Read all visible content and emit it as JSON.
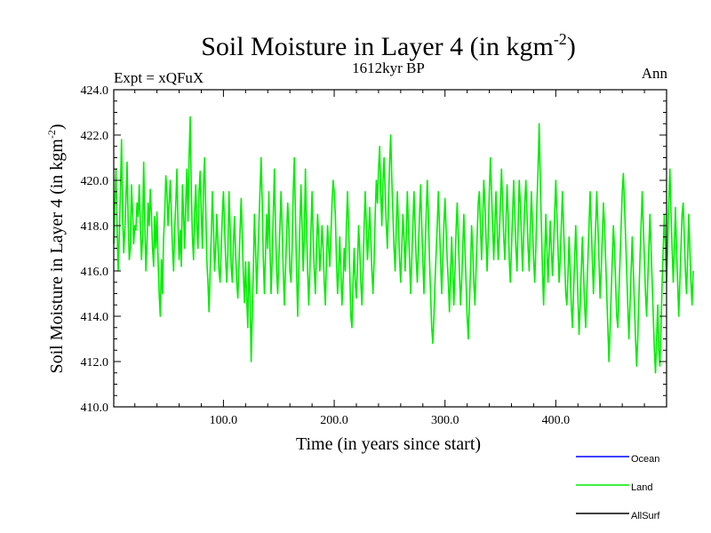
{
  "chart_data": {
    "type": "line",
    "title": "Soil Moisture in Layer 4 (in kgm",
    "title_sup": "-2",
    "title_close": ")",
    "subtitle": "1612kyr BP",
    "left_label": "Expt = xQFuX",
    "right_label": "Ann",
    "xlabel": "Time (in years since start)",
    "ylabel": "Soil Moisture in Layer 4 (in kgm",
    "ylabel_sup": "-2",
    "ylabel_close": ")",
    "xlim": [
      1,
      500
    ],
    "ylim": [
      410.0,
      424.0
    ],
    "xticks": [
      100,
      200,
      300,
      400
    ],
    "xtick_labels": [
      "100.0",
      "200.0",
      "300.0",
      "400.0"
    ],
    "yticks": [
      410,
      412,
      414,
      416,
      418,
      420,
      422,
      424
    ],
    "ytick_labels": [
      "410.0",
      "412.0",
      "414.0",
      "416.0",
      "418.0",
      "420.0",
      "422.0",
      "424.0"
    ],
    "legend": [
      {
        "name": "Ocean",
        "color": "#0000ff"
      },
      {
        "name": "Land",
        "color": "#00ee00"
      },
      {
        "name": "AllSurf",
        "color": "#000000"
      }
    ],
    "series": [
      {
        "name": "Land",
        "color": "#00ee00",
        "x_start": 1,
        "x_step": 1,
        "values": [
          417.2,
          419.0,
          420.5,
          418.0,
          416.0,
          417.5,
          419.5,
          421.8,
          418.5,
          416.8,
          417.8,
          419.2,
          420.8,
          418.2,
          416.5,
          417.0,
          419.8,
          418.6,
          417.2,
          418.0,
          417.8,
          419.0,
          418.4,
          419.8,
          418.0,
          416.5,
          417.5,
          420.8,
          418.2,
          416.0,
          417.2,
          419.0,
          418.0,
          419.6,
          418.5,
          417.0,
          416.2,
          418.4,
          417.0,
          418.6,
          416.5,
          415.0,
          414.0,
          416.5,
          415.0,
          417.5,
          418.5,
          420.2,
          419.5,
          418.0,
          419.0,
          420.0,
          418.5,
          417.0,
          416.0,
          417.8,
          419.0,
          420.5,
          418.0,
          416.5,
          417.8,
          416.2,
          419.8,
          418.5,
          417.0,
          419.0,
          420.5,
          418.2,
          421.0,
          422.8,
          419.5,
          417.5,
          416.5,
          418.5,
          419.8,
          418.0,
          417.0,
          419.5,
          420.4,
          418.5,
          417.0,
          419.8,
          421.0,
          418.8,
          416.5,
          415.5,
          414.2,
          416.0,
          417.5,
          419.5,
          418.0,
          416.0,
          417.0,
          418.5,
          417.2,
          416.0,
          415.5,
          417.0,
          418.5,
          419.5,
          418.0,
          416.5,
          415.5,
          416.8,
          419.5,
          418.0,
          416.2,
          415.5,
          417.2,
          418.4,
          416.8,
          415.5,
          414.8,
          416.2,
          417.8,
          419.2,
          417.5,
          415.8,
          414.6,
          416.4,
          414.8,
          413.5,
          416.4,
          415.0,
          412.0,
          414.0,
          416.0,
          418.5,
          417.0,
          415.0,
          416.5,
          418.0,
          419.5,
          421.0,
          419.0,
          416.5,
          415.0,
          416.8,
          418.5,
          417.0,
          419.5,
          417.0,
          415.0,
          416.5,
          418.5,
          420.5,
          418.0,
          416.0,
          415.0,
          416.5,
          418.0,
          419.5,
          417.8,
          416.0,
          414.5,
          416.0,
          417.5,
          419.0,
          418.0,
          416.0,
          415.5,
          417.0,
          419.5,
          421.0,
          418.5,
          416.0,
          414.0,
          416.0,
          418.0,
          419.8,
          418.0,
          416.0,
          417.5,
          420.5,
          418.0,
          416.0,
          414.5,
          416.0,
          417.8,
          419.5,
          417.5,
          416.0,
          415.0,
          417.0,
          418.5,
          417.5,
          416.0,
          416.8,
          418.0,
          417.0,
          415.5,
          414.5,
          416.5,
          418.0,
          417.0,
          416.2,
          417.5,
          419.0,
          420.0,
          419.5,
          418.5,
          416.5,
          415.0,
          416.0,
          417.5,
          416.0,
          414.5,
          415.5,
          417.0,
          416.0,
          418.0,
          419.5,
          418.0,
          416.0,
          414.0,
          413.5,
          415.5,
          417.0,
          415.5,
          414.8,
          416.2,
          418.0,
          417.0,
          415.5,
          414.5,
          416.0,
          418.0,
          419.5,
          418.0,
          416.5,
          417.5,
          418.8,
          417.5,
          416.0,
          415.0,
          416.5,
          418.5,
          420.0,
          419.0,
          420.5,
          421.5,
          419.5,
          418.0,
          420.0,
          421.0,
          419.5,
          418.0,
          417.0,
          419.0,
          420.8,
          422.0,
          420.0,
          418.5,
          417.0,
          416.0,
          418.0,
          419.5,
          418.0,
          416.5,
          415.5,
          417.0,
          418.5,
          417.5,
          416.0,
          417.5,
          419.5,
          418.0,
          416.5,
          415.0,
          416.5,
          418.0,
          419.5,
          418.0,
          416.5,
          415.5,
          417.0,
          418.5,
          419.8,
          418.0,
          416.5,
          415.0,
          416.8,
          418.5,
          420.0,
          418.5,
          416.5,
          415.0,
          413.5,
          412.8,
          414.0,
          415.5,
          416.8,
          418.0,
          419.5,
          418.0,
          416.5,
          415.0,
          416.5,
          418.0,
          419.2,
          417.8,
          416.5,
          415.5,
          414.2,
          415.8,
          417.5,
          416.0,
          414.5,
          416.0,
          417.8,
          419.0,
          417.5,
          416.0,
          414.5,
          415.5,
          417.0,
          418.5,
          417.0,
          415.5,
          414.0,
          413.0,
          414.5,
          416.0,
          418.0,
          417.0,
          415.5,
          414.5,
          416.0,
          417.5,
          419.0,
          419.5,
          418.0,
          416.5,
          418.0,
          420.0,
          419.0,
          417.5,
          416.0,
          417.5,
          419.5,
          421.0,
          419.5,
          418.0,
          416.5,
          418.0,
          419.5,
          418.0,
          416.5,
          417.5,
          419.0,
          420.5,
          419.0,
          417.5,
          416.5,
          418.0,
          419.8,
          418.5,
          416.5,
          415.5,
          417.0,
          418.5,
          420.0,
          418.5,
          417.0,
          416.0,
          418.0,
          420.0,
          419.0,
          417.5,
          416.0,
          417.5,
          419.0,
          420.0,
          418.5,
          417.0,
          416.0,
          418.0,
          419.5,
          418.0,
          416.5,
          415.5,
          417.0,
          419.0,
          420.5,
          422.5,
          420.0,
          418.0,
          416.0,
          414.5,
          416.5,
          418.5,
          417.0,
          415.5,
          416.8,
          418.2,
          417.0,
          415.8,
          417.0,
          418.5,
          420.0,
          418.5,
          417.0,
          415.5,
          416.5,
          418.0,
          419.5,
          418.0,
          416.5,
          415.0,
          414.5,
          415.8,
          417.5,
          416.0,
          414.5,
          413.5,
          415.0,
          416.5,
          418.0,
          416.5,
          414.8,
          413.2,
          414.5,
          416.0,
          417.5,
          416.0,
          414.5,
          413.5,
          415.0,
          416.5,
          418.0,
          419.5,
          418.0,
          416.5,
          415.0,
          416.5,
          418.0,
          419.5,
          418.0,
          416.5,
          414.8,
          416.0,
          417.5,
          419.0,
          418.0,
          416.5,
          415.0,
          413.5,
          412.0,
          413.5,
          415.0,
          416.5,
          418.0,
          417.0,
          415.5,
          414.0,
          413.5,
          415.0,
          416.5,
          418.0,
          419.5,
          420.3,
          419.0,
          417.5,
          416.0,
          414.5,
          413.0,
          414.5,
          416.0,
          417.5,
          416.0,
          414.5,
          413.0,
          411.8,
          413.0,
          414.8,
          416.5,
          418.0,
          419.5,
          418.0,
          416.5,
          415.0,
          414.0,
          415.5,
          417.0,
          418.5,
          417.0,
          415.5,
          414.0,
          412.5,
          411.5,
          413.0,
          414.5,
          412.5,
          411.8,
          413.5,
          415.5,
          417.0,
          418.5,
          417.0,
          415.5,
          417.0,
          419.0,
          420.5,
          418.5,
          417.0,
          415.5,
          417.0,
          418.8,
          417.0,
          415.5,
          414.0,
          415.5,
          417.0,
          418.5,
          419.0,
          417.5,
          416.0,
          415.0,
          416.5,
          418.5,
          417.0,
          415.5,
          414.5,
          416.0
        ]
      }
    ]
  }
}
